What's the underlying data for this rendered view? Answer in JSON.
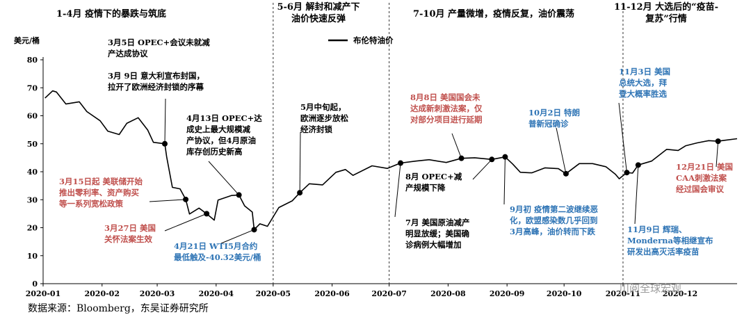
{
  "chart_data": {
    "type": "line",
    "ylabel": "美元/桶",
    "ylim": [
      0,
      80
    ],
    "yticks": [
      0,
      10,
      20,
      30,
      40,
      50,
      60,
      70,
      80
    ],
    "x_start": "2020-01-01",
    "x_end": "2020-12-31",
    "xtick_labels": [
      {
        "label": "2020-01",
        "date": "2020-01-01"
      },
      {
        "label": "2020-02",
        "date": "2020-02-01"
      },
      {
        "label": "2020-03",
        "date": "2020-03-01"
      },
      {
        "label": "2020-04",
        "date": "2020-04-01"
      },
      {
        "label": "2020-05",
        "date": "2020-05-01"
      },
      {
        "label": "2020-06",
        "date": "2020-06-01"
      },
      {
        "label": "2020-07",
        "date": "2020-07-01"
      },
      {
        "label": "2020-08",
        "date": "2020-08-01"
      },
      {
        "label": "2020-09",
        "date": "2020-09-01"
      },
      {
        "label": "2020-10",
        "date": "2020-10-01"
      },
      {
        "label": "2020-11",
        "date": "2020-11-01"
      },
      {
        "label": "2020-12",
        "date": "2020-12-01"
      }
    ],
    "legend": {
      "label": "布伦特油价",
      "position": "top-center"
    },
    "series": [
      {
        "name": "布伦特油价",
        "color": "#000000",
        "points": [
          [
            "2020-01-02",
            66.3
          ],
          [
            "2020-01-06",
            68.9
          ],
          [
            "2020-01-08",
            68.5
          ],
          [
            "2020-01-13",
            64.2
          ],
          [
            "2020-01-20",
            65.0
          ],
          [
            "2020-01-24",
            61.5
          ],
          [
            "2020-01-31",
            58.2
          ],
          [
            "2020-02-04",
            54.5
          ],
          [
            "2020-02-10",
            53.3
          ],
          [
            "2020-02-14",
            57.3
          ],
          [
            "2020-02-20",
            59.3
          ],
          [
            "2020-02-25",
            54.9
          ],
          [
            "2020-02-28",
            50.5
          ],
          [
            "2020-03-05",
            50.0
          ],
          [
            "2020-03-06",
            45.3
          ],
          [
            "2020-03-09",
            34.4
          ],
          [
            "2020-03-13",
            33.9
          ],
          [
            "2020-03-16",
            30.1
          ],
          [
            "2020-03-18",
            24.9
          ],
          [
            "2020-03-23",
            27.0
          ],
          [
            "2020-03-27",
            25.0
          ],
          [
            "2020-03-31",
            22.7
          ],
          [
            "2020-04-02",
            29.9
          ],
          [
            "2020-04-09",
            31.5
          ],
          [
            "2020-04-13",
            31.7
          ],
          [
            "2020-04-16",
            27.8
          ],
          [
            "2020-04-20",
            25.6
          ],
          [
            "2020-04-21",
            19.3
          ],
          [
            "2020-04-24",
            21.4
          ],
          [
            "2020-04-28",
            20.5
          ],
          [
            "2020-05-04",
            27.2
          ],
          [
            "2020-05-11",
            29.6
          ],
          [
            "2020-05-15",
            32.5
          ],
          [
            "2020-05-20",
            35.7
          ],
          [
            "2020-05-27",
            35.3
          ],
          [
            "2020-06-03",
            39.8
          ],
          [
            "2020-06-08",
            40.8
          ],
          [
            "2020-06-12",
            38.7
          ],
          [
            "2020-06-22",
            42.1
          ],
          [
            "2020-06-30",
            41.2
          ],
          [
            "2020-07-07",
            43.1
          ],
          [
            "2020-07-15",
            43.8
          ],
          [
            "2020-07-22",
            44.3
          ],
          [
            "2020-07-31",
            43.3
          ],
          [
            "2020-08-08",
            44.8
          ],
          [
            "2020-08-15",
            45.0
          ],
          [
            "2020-08-24",
            44.4
          ],
          [
            "2020-08-31",
            45.3
          ],
          [
            "2020-09-04",
            42.7
          ],
          [
            "2020-09-08",
            39.8
          ],
          [
            "2020-09-14",
            39.6
          ],
          [
            "2020-09-21",
            41.4
          ],
          [
            "2020-09-28",
            41.1
          ],
          [
            "2020-10-02",
            39.3
          ],
          [
            "2020-10-09",
            42.9
          ],
          [
            "2020-10-16",
            42.9
          ],
          [
            "2020-10-23",
            41.8
          ],
          [
            "2020-10-28",
            39.1
          ],
          [
            "2020-10-30",
            37.5
          ],
          [
            "2020-11-03",
            39.7
          ],
          [
            "2020-11-06",
            39.5
          ],
          [
            "2020-11-09",
            42.4
          ],
          [
            "2020-11-16",
            43.8
          ],
          [
            "2020-11-24",
            48.0
          ],
          [
            "2020-11-30",
            47.6
          ],
          [
            "2020-12-04",
            49.3
          ],
          [
            "2020-12-10",
            50.3
          ],
          [
            "2020-12-16",
            51.1
          ],
          [
            "2020-12-21",
            50.9
          ],
          [
            "2020-12-24",
            51.2
          ],
          [
            "2020-12-31",
            51.8
          ]
        ]
      }
    ],
    "markers": [
      {
        "date": "2020-03-05",
        "value": 50.0
      },
      {
        "date": "2020-03-16",
        "value": 30.1
      },
      {
        "date": "2020-03-27",
        "value": 25.0
      },
      {
        "date": "2020-04-13",
        "value": 31.7
      },
      {
        "date": "2020-04-21",
        "value": 19.3
      },
      {
        "date": "2020-05-15",
        "value": 32.5
      },
      {
        "date": "2020-07-07",
        "value": 43.1
      },
      {
        "date": "2020-08-08",
        "value": 44.8
      },
      {
        "date": "2020-08-24",
        "value": 44.4
      },
      {
        "date": "2020-08-31",
        "value": 45.3
      },
      {
        "date": "2020-10-02",
        "value": 39.3
      },
      {
        "date": "2020-11-03",
        "value": 39.7
      },
      {
        "date": "2020-11-09",
        "value": 42.4
      },
      {
        "date": "2020-12-21",
        "value": 50.9
      }
    ],
    "phase_dividers": [
      "2020-05-01",
      "2020-07-01",
      "2020-11-01"
    ],
    "phases": [
      {
        "lines": [
          "1-4月 疫情下的暴跌与筑底"
        ]
      },
      {
        "lines": [
          "5-6月 解封和减产下",
          "油价快速反弹"
        ]
      },
      {
        "lines": [
          "7-10月 产量微增，疫情反复，油价震荡"
        ]
      },
      {
        "lines": [
          "11-12月 大选后的“疫苗-",
          "复苏”行情"
        ]
      }
    ],
    "annotations": [
      {
        "color": "#000000",
        "lines": [
          "3月5日 OPEC+会议未就减",
          "产达成协议"
        ]
      },
      {
        "color": "#000000",
        "lines": [
          "3月 9日 意大利宣布封国，",
          "拉开了欧洲经济封锁的序幕"
        ]
      },
      {
        "color": "#000000",
        "lines": [
          "4月13日 OPEC+达",
          "成史上最大规模减",
          "产协议，但4月原油",
          "库存创历史新高"
        ]
      },
      {
        "color": "#c0504d",
        "lines": [
          "3月15日起 美联储开始",
          "推出零利率、资产购买",
          "等一系列宽松政策"
        ]
      },
      {
        "color": "#c0504d",
        "lines": [
          "3月27日 美国",
          "关怀法案生效"
        ]
      },
      {
        "color": "#2e74b5",
        "lines": [
          "4月21日 WTI5月合约",
          "最低触及-40.32美元/桶"
        ]
      },
      {
        "color": "#000000",
        "lines": [
          "5月中旬起，",
          "欧洲逐步放松",
          "经济封锁"
        ]
      },
      {
        "color": "#c0504d",
        "lines": [
          "8月8日 美国国会未",
          "达成新刺激法案，仅",
          "对部分项目进行延期"
        ]
      },
      {
        "color": "#2e74b5",
        "lines": [
          "10月2日 特朗",
          "普新冠确诊"
        ]
      },
      {
        "color": "#000000",
        "lines": [
          "8月 OPEC+减",
          "产规模下降"
        ]
      },
      {
        "color": "#000000",
        "lines": [
          "7月 美国原油减产",
          "明显放缓；美国确",
          "诊病例大幅增加"
        ]
      },
      {
        "color": "#2e74b5",
        "lines": [
          "9月初 疫情第二波继续恶",
          "化，欧盟感染数几乎回到",
          "3月高峰，油价转而下跌"
        ]
      },
      {
        "color": "#2e74b5",
        "lines": [
          "11月3日 美国",
          "总统大选，拜",
          "登大概率胜选"
        ]
      },
      {
        "color": "#c0504d",
        "lines": [
          "12月21日 美国",
          "CAA刺激法案",
          "经过国会审议"
        ]
      },
      {
        "color": "#2e74b5",
        "lines": [
          "11月9日 辉瑞、",
          "Monderna等相继宣布",
          "研发出高灭活率疫苗"
        ]
      }
    ]
  },
  "source_text": "数据来源：Bloomberg，东吴证券研究所",
  "watermark_text": "川阅全球宏观"
}
